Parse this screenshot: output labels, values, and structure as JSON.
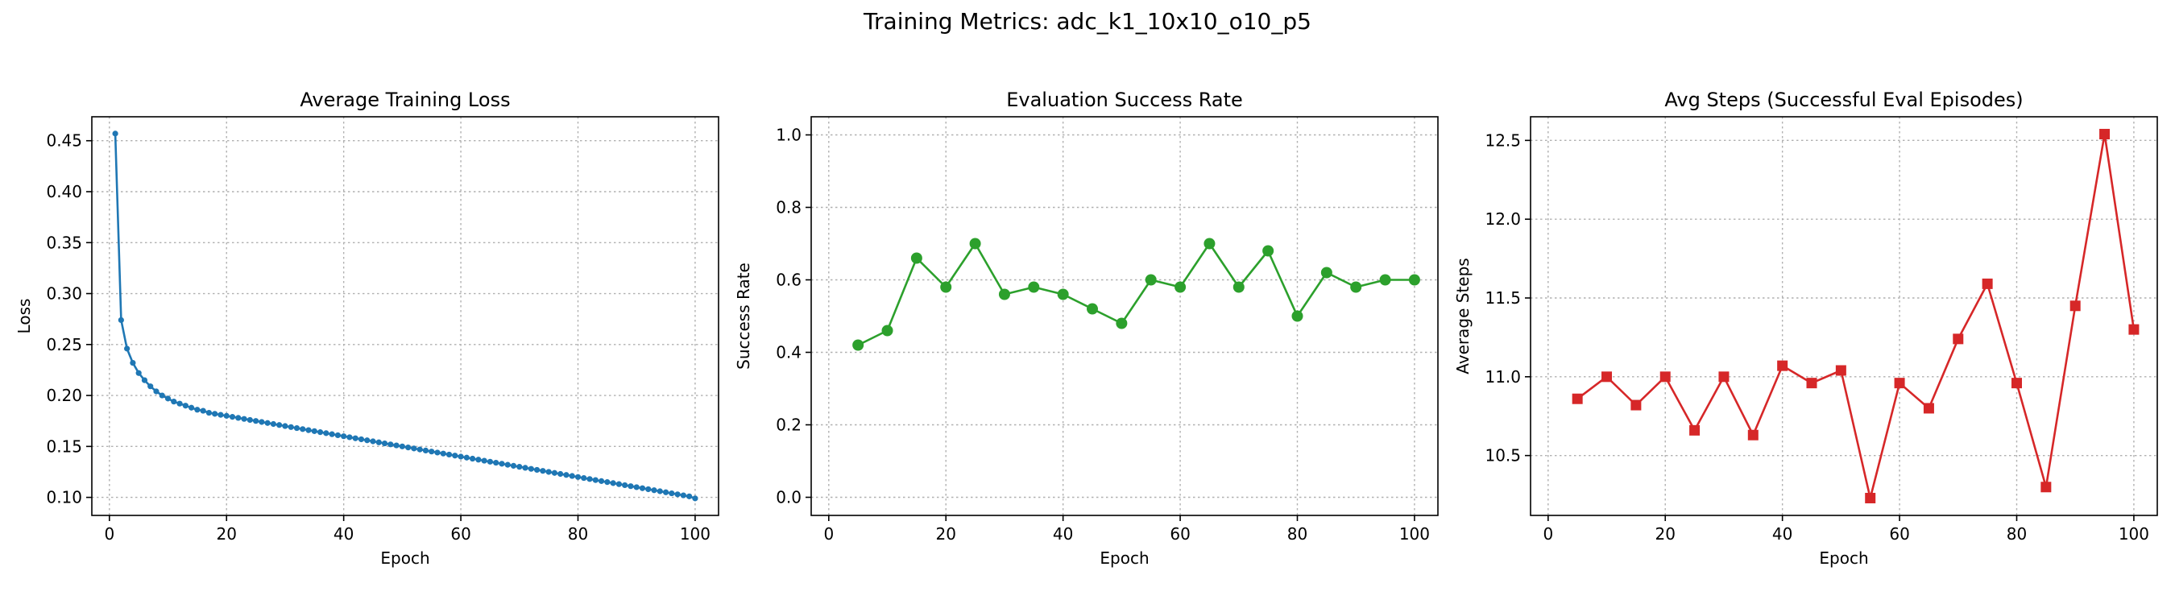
{
  "figure": {
    "title": "Training Metrics: adc_k1_10x10_o10_p5"
  },
  "chart_data": [
    {
      "type": "line",
      "title": "Average Training Loss",
      "xlabel": "Epoch",
      "ylabel": "Loss",
      "xlim": [
        -3,
        104
      ],
      "ylim": [
        0.0823,
        0.4735
      ],
      "xticks": [
        0,
        20,
        40,
        60,
        80,
        100
      ],
      "yticks": [
        0.1,
        0.15,
        0.2,
        0.25,
        0.3,
        0.35,
        0.4,
        0.45
      ],
      "ytick_decimals": 2,
      "grid": true,
      "color": "#1f77b4",
      "marker": "circle-small",
      "x": [
        1,
        2,
        3,
        4,
        5,
        6,
        7,
        8,
        9,
        10,
        11,
        12,
        13,
        14,
        15,
        16,
        17,
        18,
        19,
        20,
        21,
        22,
        23,
        24,
        25,
        26,
        27,
        28,
        29,
        30,
        31,
        32,
        33,
        34,
        35,
        36,
        37,
        38,
        39,
        40,
        41,
        42,
        43,
        44,
        45,
        46,
        47,
        48,
        49,
        50,
        51,
        52,
        53,
        54,
        55,
        56,
        57,
        58,
        59,
        60,
        61,
        62,
        63,
        64,
        65,
        66,
        67,
        68,
        69,
        70,
        71,
        72,
        73,
        74,
        75,
        76,
        77,
        78,
        79,
        80,
        81,
        82,
        83,
        84,
        85,
        86,
        87,
        88,
        89,
        90,
        91,
        92,
        93,
        94,
        95,
        96,
        97,
        98,
        99,
        100
      ],
      "values": [
        0.457,
        0.274,
        0.246,
        0.232,
        0.222,
        0.215,
        0.209,
        0.204,
        0.2,
        0.197,
        0.194,
        0.192,
        0.19,
        0.188,
        0.186,
        0.185,
        0.183,
        0.182,
        0.181,
        0.18,
        0.179,
        0.178,
        0.177,
        0.176,
        0.175,
        0.174,
        0.173,
        0.172,
        0.171,
        0.17,
        0.169,
        0.168,
        0.167,
        0.166,
        0.165,
        0.164,
        0.163,
        0.162,
        0.161,
        0.16,
        0.159,
        0.158,
        0.157,
        0.156,
        0.155,
        0.154,
        0.153,
        0.152,
        0.151,
        0.15,
        0.149,
        0.148,
        0.147,
        0.146,
        0.145,
        0.144,
        0.143,
        0.142,
        0.141,
        0.14,
        0.139,
        0.138,
        0.137,
        0.136,
        0.135,
        0.134,
        0.133,
        0.132,
        0.131,
        0.13,
        0.129,
        0.128,
        0.127,
        0.126,
        0.125,
        0.124,
        0.123,
        0.122,
        0.121,
        0.12,
        0.119,
        0.118,
        0.117,
        0.116,
        0.115,
        0.114,
        0.113,
        0.112,
        0.111,
        0.11,
        0.109,
        0.108,
        0.107,
        0.106,
        0.105,
        0.104,
        0.103,
        0.102,
        0.101,
        0.099
      ]
    },
    {
      "type": "line",
      "title": "Evaluation Success Rate",
      "xlabel": "Epoch",
      "ylabel": "Success Rate",
      "xlim": [
        -3,
        104
      ],
      "ylim": [
        -0.05,
        1.05
      ],
      "xticks": [
        0,
        20,
        40,
        60,
        80,
        100
      ],
      "yticks": [
        0.0,
        0.2,
        0.4,
        0.6,
        0.8,
        1.0
      ],
      "ytick_decimals": 1,
      "grid": true,
      "color": "#2ca02c",
      "marker": "circle",
      "x": [
        5,
        10,
        15,
        20,
        25,
        30,
        35,
        40,
        45,
        50,
        55,
        60,
        65,
        70,
        75,
        80,
        85,
        90,
        95,
        100
      ],
      "values": [
        0.42,
        0.46,
        0.66,
        0.58,
        0.7,
        0.56,
        0.58,
        0.56,
        0.52,
        0.48,
        0.6,
        0.58,
        0.7,
        0.58,
        0.68,
        0.5,
        0.62,
        0.58,
        0.6,
        0.6
      ]
    },
    {
      "type": "line",
      "title": "Avg Steps (Successful Eval Episodes)",
      "xlabel": "Epoch",
      "ylabel": "Average Steps",
      "xlim": [
        -3,
        104
      ],
      "ylim": [
        10.12,
        12.65
      ],
      "xticks": [
        0,
        20,
        40,
        60,
        80,
        100
      ],
      "yticks": [
        10.5,
        11.0,
        11.5,
        12.0,
        12.5
      ],
      "ytick_decimals": 1,
      "grid": true,
      "color": "#d62728",
      "marker": "square",
      "x": [
        5,
        10,
        15,
        20,
        25,
        30,
        35,
        40,
        45,
        50,
        55,
        60,
        65,
        70,
        75,
        80,
        85,
        90,
        95,
        100
      ],
      "values": [
        10.86,
        11.0,
        10.82,
        11.0,
        10.66,
        11.0,
        10.63,
        11.07,
        10.96,
        11.04,
        10.23,
        10.96,
        10.8,
        11.24,
        11.59,
        10.96,
        10.3,
        11.45,
        12.54,
        11.3
      ]
    }
  ]
}
